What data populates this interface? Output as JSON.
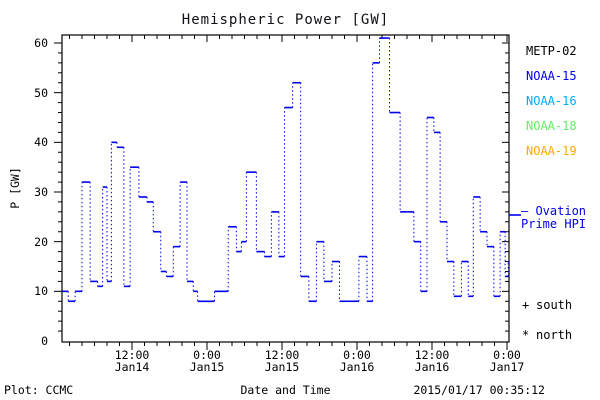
{
  "title": "Hemispheric Power [GW]",
  "y_axis": {
    "label": "P [GW]",
    "ticks": [
      {
        "v": 0,
        "label": "0"
      },
      {
        "v": 10,
        "label": "10"
      },
      {
        "v": 20,
        "label": "20"
      },
      {
        "v": 30,
        "label": "30"
      },
      {
        "v": 40,
        "label": "40"
      },
      {
        "v": 50,
        "label": "50"
      },
      {
        "v": 60,
        "label": "60"
      }
    ]
  },
  "x_axis": {
    "label": "Date and Time",
    "ticks": [
      {
        "t": 12,
        "time": "12:00",
        "date": "Jan14"
      },
      {
        "t": 24,
        "time": "0:00",
        "date": "Jan15"
      },
      {
        "t": 36,
        "time": "12:00",
        "date": "Jan15"
      },
      {
        "t": 48,
        "time": "0:00",
        "date": "Jan16"
      },
      {
        "t": 60,
        "time": "12:00",
        "date": "Jan16"
      },
      {
        "t": 72,
        "time": "0:00",
        "date": "Jan17"
      }
    ]
  },
  "legend": {
    "satellites": [
      {
        "label": "METP-02",
        "color": "#000000"
      },
      {
        "label": "NOAA-15",
        "color": "#0000ee"
      },
      {
        "label": "NOAA-16",
        "color": "#00aaff"
      },
      {
        "label": "NOAA-18",
        "color": "#66ee66"
      },
      {
        "label": "NOAA-19",
        "color": "#ffaa00"
      }
    ],
    "ovation_line1": "— Ovation",
    "ovation_line2": "Prime HPI",
    "ovation_color": "#0000ee",
    "markers": [
      {
        "symbol": "+",
        "label": "south"
      },
      {
        "symbol": "*",
        "label": "north"
      }
    ]
  },
  "footer": {
    "left": "Plot: CCMC",
    "right": "2015/01/17 00:35:12"
  },
  "chart_data": {
    "type": "line",
    "subtype": "step-after, solid horizontal dashes with dotted vertical connectors",
    "title": "Hemispheric Power [GW]",
    "xlabel": "Date and Time",
    "ylabel": "P [GW]",
    "x_unit": "hours since 2015-01-14 00:00 UT",
    "xlim": [
      0.8,
      72.5
    ],
    "ylim": [
      0,
      62
    ],
    "grid": false,
    "legend_position": "right-outside",
    "series": [
      {
        "name": "NOAA-15 Ovation Prime HPI",
        "color": "#0000ee",
        "points": [
          [
            0.8,
            10
          ],
          [
            1.8,
            8
          ],
          [
            2.9,
            10
          ],
          [
            4.0,
            32
          ],
          [
            5.3,
            12
          ],
          [
            6.5,
            11
          ],
          [
            7.3,
            31
          ],
          [
            8.0,
            12
          ],
          [
            8.7,
            40
          ],
          [
            9.6,
            39
          ],
          [
            10.7,
            11
          ],
          [
            11.7,
            35
          ],
          [
            13.1,
            29
          ],
          [
            14.4,
            28
          ],
          [
            15.4,
            22
          ],
          [
            16.6,
            14
          ],
          [
            17.5,
            13
          ],
          [
            18.6,
            19
          ],
          [
            19.7,
            32
          ],
          [
            20.8,
            12
          ],
          [
            21.8,
            10
          ],
          [
            22.5,
            8
          ],
          [
            25.2,
            10
          ],
          [
            27.4,
            23
          ],
          [
            28.7,
            18
          ],
          [
            29.5,
            20
          ],
          [
            30.3,
            34
          ],
          [
            31.9,
            18
          ],
          [
            33.2,
            17
          ],
          [
            34.3,
            26
          ],
          [
            35.5,
            17
          ],
          [
            36.4,
            47
          ],
          [
            37.7,
            52
          ],
          [
            39.0,
            13
          ],
          [
            40.3,
            8
          ],
          [
            41.5,
            20
          ],
          [
            42.7,
            12
          ],
          [
            44.0,
            16
          ],
          [
            45.2,
            8
          ],
          [
            46.6,
            8
          ],
          [
            48.3,
            17
          ],
          [
            49.6,
            8
          ],
          [
            50.5,
            56
          ],
          [
            51.6,
            61
          ],
          [
            53.2,
            46
          ],
          [
            54.9,
            26
          ],
          [
            56.1,
            26
          ],
          [
            57.1,
            20
          ],
          [
            58.2,
            10
          ],
          [
            59.2,
            45
          ],
          [
            60.3,
            42
          ],
          [
            61.3,
            24
          ],
          [
            62.4,
            16
          ],
          [
            63.5,
            9
          ],
          [
            64.7,
            16
          ],
          [
            65.8,
            9
          ],
          [
            66.6,
            29
          ],
          [
            67.7,
            22
          ],
          [
            68.8,
            19
          ],
          [
            69.9,
            9
          ],
          [
            70.9,
            22
          ],
          [
            71.7,
            13
          ],
          [
            72.2,
            16
          ]
        ]
      }
    ]
  }
}
